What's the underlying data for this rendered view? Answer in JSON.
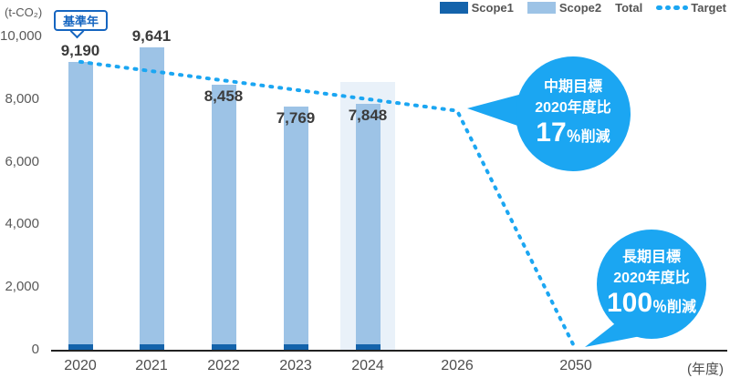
{
  "unit_label": "(t-CO₂)",
  "baseline_label": "基準年",
  "x_axis_unit": "(年度)",
  "legend": [
    {
      "label": "Scope1",
      "swatch": "solid",
      "color": "#1463AB"
    },
    {
      "label": "Scope2",
      "swatch": "solid",
      "color": "#9DC3E6"
    },
    {
      "label": "Total",
      "swatch": "none"
    },
    {
      "label": "Target",
      "swatch": "dotted",
      "color": "#1BA6F2"
    }
  ],
  "colors": {
    "scope1": "#1463AB",
    "scope2": "#9DC3E6",
    "highlight_band": "#E9F1F9",
    "target_line": "#1BA6F2",
    "bubble": "#1BA6F2"
  },
  "chart_data": {
    "type": "bar",
    "categories": [
      "2020",
      "2021",
      "2022",
      "2023",
      "2024"
    ],
    "totals": [
      9190,
      9641,
      8458,
      7769,
      7848
    ],
    "total_labels": [
      "9,190",
      "9,641",
      "8,458",
      "7,769",
      "7,848"
    ],
    "series": [
      {
        "name": "Scope1",
        "values": [
          175,
          175,
          175,
          175,
          175
        ],
        "note": "unlabeled, estimated from bar segments"
      },
      {
        "name": "Scope2",
        "values": [
          9015,
          9466,
          8283,
          7594,
          7673
        ],
        "note": "estimated = total - Scope1"
      }
    ],
    "highlight_year": "2024",
    "yticks": [
      "0",
      "2,000",
      "4,000",
      "6,000",
      "8,000",
      "10,000"
    ],
    "ylim": [
      0,
      10000
    ],
    "extra_x_labels": [
      "2026",
      "2050"
    ],
    "target_line": {
      "x": [
        2020,
        2026,
        2050
      ],
      "values": [
        9190,
        7628,
        0
      ]
    }
  },
  "annotations": {
    "mid_term": {
      "line1": "中期目標",
      "line2": "2020年度比",
      "big": "17",
      "suffix": "％削減"
    },
    "long_term": {
      "line1": "長期目標",
      "line2": "2020年度比",
      "big": "100",
      "suffix": "％削減"
    }
  }
}
